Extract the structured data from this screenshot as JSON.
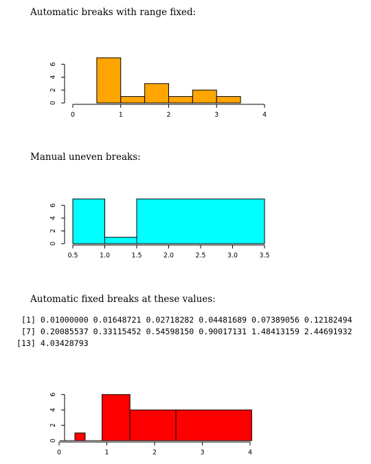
{
  "captions": {
    "first": "Automatic breaks with range fixed:",
    "second": "Manual uneven breaks:",
    "third": "Automatic fixed breaks at these values:"
  },
  "r_output": [
    " [1] 0.01000000 0.01648721 0.02718282 0.04481689 0.07389056 0.12182494",
    " [7] 0.20085537 0.33115452 0.54598150 0.90017131 1.48413159 2.44691932",
    "[13] 4.03428793"
  ],
  "chart_data": [
    {
      "type": "bar",
      "fill": "#FFA500",
      "xlim": [
        0,
        4
      ],
      "ylim": [
        0,
        7
      ],
      "xticks": [
        "0",
        "1",
        "2",
        "3",
        "4"
      ],
      "yticks": [
        "0",
        "2",
        "4",
        "6"
      ],
      "bins": [
        {
          "from": 0.5,
          "to": 1.0,
          "count": 7
        },
        {
          "from": 1.0,
          "to": 1.5,
          "count": 1
        },
        {
          "from": 1.5,
          "to": 2.0,
          "count": 3
        },
        {
          "from": 2.0,
          "to": 2.5,
          "count": 1
        },
        {
          "from": 2.5,
          "to": 3.0,
          "count": 2
        },
        {
          "from": 3.0,
          "to": 3.5,
          "count": 1
        }
      ]
    },
    {
      "type": "bar",
      "fill": "#00FFFF",
      "xlim": [
        0.5,
        3.5
      ],
      "ylim": [
        0,
        7
      ],
      "xticks": [
        "0.5",
        "1.0",
        "1.5",
        "2.0",
        "2.5",
        "3.0",
        "3.5"
      ],
      "yticks": [
        "0",
        "2",
        "4",
        "6"
      ],
      "bins": [
        {
          "from": 0.5,
          "to": 1.0,
          "count": 7
        },
        {
          "from": 1.0,
          "to": 1.5,
          "count": 1
        },
        {
          "from": 1.5,
          "to": 3.5,
          "count": 7
        }
      ]
    },
    {
      "type": "bar",
      "fill": "#FF0000",
      "xlim": [
        0,
        4
      ],
      "ylim": [
        0,
        6
      ],
      "xticks": [
        "0",
        "1",
        "2",
        "3",
        "4"
      ],
      "yticks": [
        "0",
        "2",
        "4",
        "6"
      ],
      "bins": [
        {
          "from": 0.01,
          "to": 0.01648721,
          "count": 0
        },
        {
          "from": 0.01648721,
          "to": 0.02718282,
          "count": 0
        },
        {
          "from": 0.02718282,
          "to": 0.04481689,
          "count": 0
        },
        {
          "from": 0.04481689,
          "to": 0.07389056,
          "count": 0
        },
        {
          "from": 0.07389056,
          "to": 0.12182494,
          "count": 0
        },
        {
          "from": 0.12182494,
          "to": 0.20085537,
          "count": 0
        },
        {
          "from": 0.20085537,
          "to": 0.33115452,
          "count": 0
        },
        {
          "from": 0.33115452,
          "to": 0.5459815,
          "count": 1
        },
        {
          "from": 0.5459815,
          "to": 0.90017131,
          "count": 0
        },
        {
          "from": 0.90017131,
          "to": 1.48413159,
          "count": 6
        },
        {
          "from": 1.48413159,
          "to": 2.44691932,
          "count": 4
        },
        {
          "from": 2.44691932,
          "to": 4.03428793,
          "count": 4
        }
      ]
    }
  ]
}
